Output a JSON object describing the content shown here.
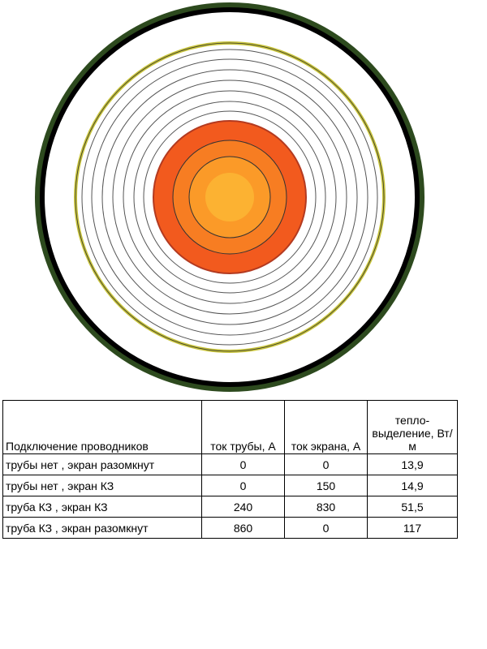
{
  "table": {
    "header": [
      "Подключение проводников",
      "ток трубы, А",
      "ток экрана, А",
      "тепло-выделение, Вт/м"
    ],
    "rows": [
      [
        "трубы нет , экран разомкнут",
        "0",
        "0",
        "13,9"
      ],
      [
        "трубы нет , экран  КЗ",
        "0",
        "150",
        "14,9"
      ],
      [
        "труба КЗ , экран  КЗ",
        "240",
        "830",
        "51,5"
      ],
      [
        "труба КЗ , экран разомкнут",
        "860",
        "0",
        "117"
      ]
    ]
  }
}
